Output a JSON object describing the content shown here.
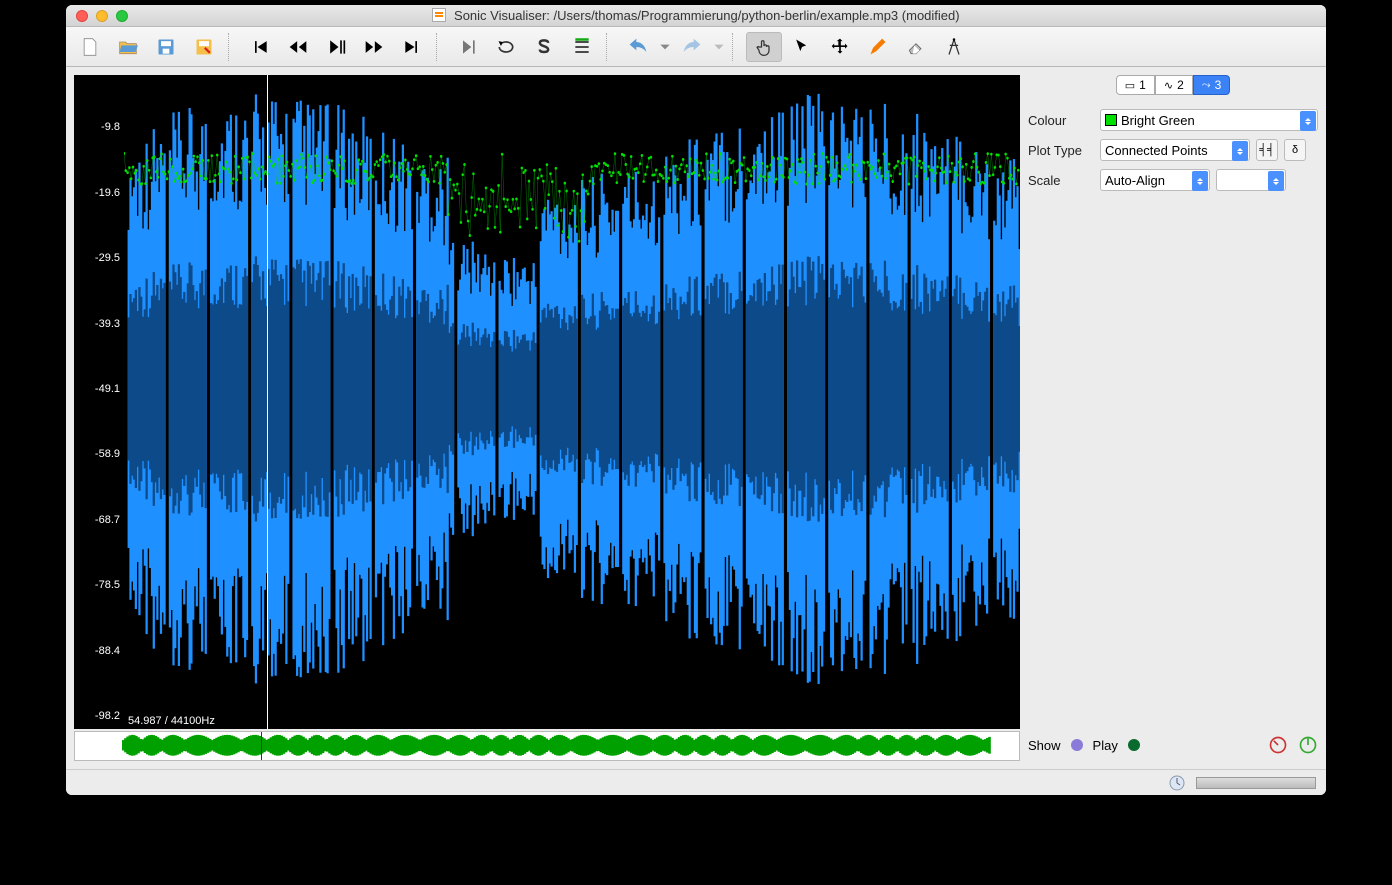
{
  "window": {
    "title_prefix": "Sonic Visualiser: ",
    "file_path": "/Users/thomas/Programmierung/python-berlin/example.mp3",
    "modified_suffix": " (modified)"
  },
  "toolbar": {
    "groups": [
      [
        "new-file",
        "open-file",
        "save-file",
        "save-file-as"
      ],
      [
        "skip-start",
        "rewind",
        "play-pause",
        "fast-forward",
        "skip-end"
      ],
      [
        "play-selection",
        "loop",
        "solo",
        "align"
      ],
      [
        "undo",
        "undo-more",
        "redo",
        "redo-more"
      ],
      [
        "navigate",
        "select",
        "move",
        "edit",
        "erase",
        "measure"
      ]
    ],
    "active_tool": "navigate"
  },
  "layer_tabs": [
    {
      "id": "1",
      "label": "1",
      "active": false,
      "icon": "ruler"
    },
    {
      "id": "2",
      "label": "2",
      "active": false,
      "icon": "wave"
    },
    {
      "id": "3",
      "label": "3",
      "active": true,
      "icon": "plot"
    }
  ],
  "properties": {
    "color": {
      "label": "Colour",
      "value": "Bright Green",
      "swatch": "#00e000"
    },
    "plot_type": {
      "label": "Plot Type",
      "value": "Connected Points"
    },
    "scale": {
      "label": "Scale",
      "value": "Auto-Align"
    },
    "extra_btn1": "╡╡",
    "extra_btn2": "δ"
  },
  "bottom": {
    "show": "Show",
    "play": "Play",
    "show_led": "#8b7bd8",
    "play_led": "#0a6b2f"
  },
  "waveform": {
    "y_ticks": [
      {
        "v": "-9.8",
        "pct": 8
      },
      {
        "v": "-19.6",
        "pct": 18
      },
      {
        "v": "-29.5",
        "pct": 28
      },
      {
        "v": "-39.3",
        "pct": 38
      },
      {
        "v": "-49.1",
        "pct": 48
      },
      {
        "v": "-58.9",
        "pct": 58
      },
      {
        "v": "-68.7",
        "pct": 68
      },
      {
        "v": "-78.5",
        "pct": 78
      },
      {
        "v": "-88.4",
        "pct": 88
      },
      {
        "v": "-98.2",
        "pct": 98
      }
    ],
    "readout": "54.987 / 44100Hz",
    "playhead_pct": 16,
    "colors": {
      "wave": "#1e90ff",
      "wave_dark": "#0d4a8a",
      "plot": "#00e000",
      "bg": "#000000"
    },
    "overview_color": "#00a000"
  }
}
